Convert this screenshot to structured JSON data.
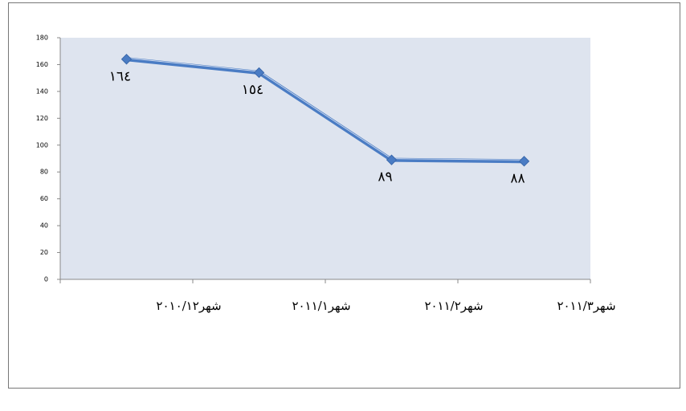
{
  "chart_data": {
    "type": "line",
    "categories": [
      "شهر٢٠١٠/١٢",
      "شهر٢٠١١/١",
      "شهر٢٠١١/٢",
      "شهر٢٠١١/٣"
    ],
    "series": [
      {
        "name": "",
        "color": "#4a7cc4",
        "values": [
          164,
          154,
          89,
          88
        ],
        "value_labels": [
          "١٦٤",
          "١٥٤",
          "٨٩",
          "٨٨"
        ]
      }
    ],
    "ylim": [
      0,
      180
    ],
    "yticks": [
      0,
      20,
      40,
      60,
      80,
      100,
      120,
      140,
      160,
      180
    ],
    "grid": false
  }
}
